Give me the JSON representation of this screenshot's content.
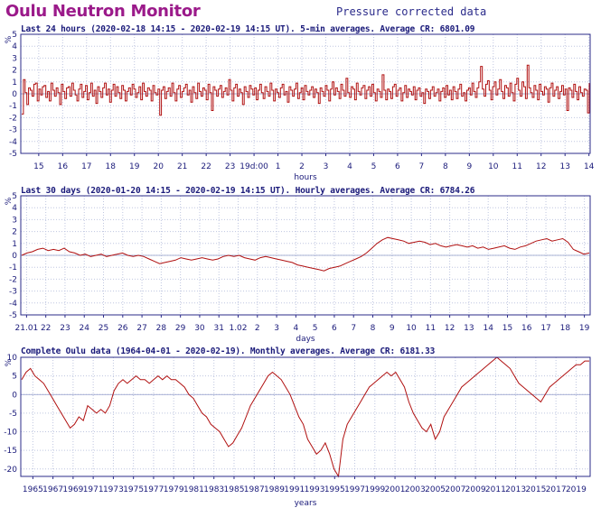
{
  "page": {
    "title": "Oulu Neutron Monitor",
    "subtitle": "Pressure corrected data"
  },
  "colors": {
    "line": "#b01010",
    "grid": "#bfc6e0",
    "frame": "#2b2b8a",
    "text": "#1a1a7a",
    "title": "#9b1a8a"
  },
  "chart_data": [
    {
      "type": "line",
      "title": "Last 24 hours (2020-02-18 14:15 - 2020-02-19 14:15 UT). 5-min averages. Average CR: 6801.09",
      "ylabel": "%",
      "xlabel": "hours",
      "ylim": [
        -5,
        5
      ],
      "yticks": [
        5,
        4,
        3,
        2,
        1,
        0,
        -1,
        -2,
        -3,
        -4,
        -5
      ],
      "xticks": [
        "15",
        "16",
        "17",
        "18",
        "19",
        "20",
        "21",
        "22",
        "23",
        "19d:00",
        "1",
        "2",
        "3",
        "4",
        "5",
        "6",
        "7",
        "8",
        "9",
        "10",
        "11",
        "12",
        "13",
        "14"
      ],
      "grid": true,
      "series": [
        {
          "values": [
            -1.7,
            1.2,
            0.1,
            -0.9,
            0.5,
            0.3,
            -0.2,
            0.8,
            0.9,
            -0.6,
            0.4,
            -0.1,
            0.6,
            0.7,
            -0.3,
            0.2,
            -0.6,
            0.9,
            0.3,
            -0.2,
            0.5,
            0.1,
            -0.9,
            0.8,
            0.2,
            -0.4,
            0.5,
            0.6,
            -0.2,
            0.9,
            0.3,
            -0.1,
            -0.6,
            0.4,
            0.8,
            -0.3,
            0.2,
            0.7,
            -0.5,
            0.1,
            0.9,
            -0.2,
            0.3,
            -0.8,
            0.6,
            0.2,
            -0.3,
            0.5,
            0.9,
            -0.1,
            0.4,
            -0.7,
            0.3,
            0.8,
            -0.2,
            0.6,
            0.1,
            -0.4,
            0.7,
            0.3,
            -0.6,
            0.2,
            0.5,
            -0.1,
            0.8,
            0.4,
            -0.3,
            0.1,
            0.6,
            -0.5,
            0.9,
            0.2,
            -0.2,
            0.5,
            0.3,
            -0.6,
            0.7,
            0.1,
            -0.1,
            0.4,
            -1.8,
            0.3,
            0.6,
            -0.4,
            0.2,
            0.5,
            -0.2,
            0.9,
            0.1,
            -0.6,
            0.4,
            0.7,
            -0.3,
            0.2,
            0.5,
            0.8,
            -0.1,
            0.3,
            -0.7,
            0.6,
            0.1,
            -0.4,
            0.9,
            0.2,
            -0.2,
            0.5,
            0.3,
            -0.5,
            0.8,
            0.1,
            -1.4,
            0.6,
            0.3,
            -0.2,
            0.4,
            0.7,
            -0.3,
            0.2,
            0.5,
            -0.1,
            1.2,
            0.3,
            -0.6,
            0.5,
            0.8,
            -0.2,
            0.4,
            0.1,
            -0.9,
            0.6,
            0.2,
            -0.3,
            0.7,
            0.4,
            -0.1,
            0.5,
            -0.5,
            0.3,
            0.8,
            0.1,
            -0.4,
            0.6,
            0.2,
            -0.2,
            0.9,
            0.3,
            -0.6,
            0.4,
            0.1,
            -0.3,
            0.5,
            0.8,
            -0.1,
            0.2,
            -0.7,
            0.6,
            0.3,
            -0.2,
            0.4,
            0.9,
            -0.4,
            0.1,
            0.5,
            -0.5,
            0.7,
            0.2,
            -0.1,
            0.3,
            0.6,
            -0.3,
            0.4,
            0.1,
            -0.8,
            0.5,
            0.2,
            -0.2,
            0.7,
            0.3,
            -0.6,
            0.4,
            1.0,
            -0.1,
            0.5,
            0.2,
            -0.4,
            0.8,
            0.3,
            -0.2,
            1.3,
            0.1,
            -0.3,
            0.6,
            0.4,
            -0.5,
            0.9,
            0.2,
            -0.1,
            0.5,
            0.7,
            -0.4,
            0.3,
            0.6,
            -0.2,
            0.8,
            0.1,
            -0.6,
            0.4,
            0.2,
            -0.3,
            1.6,
            0.3,
            -0.5,
            0.4,
            0.2,
            -0.4,
            0.6,
            0.8,
            -0.2,
            0.3,
            0.5,
            -0.6,
            0.1,
            0.7,
            -0.3,
            0.4,
            0.2,
            -0.1,
            0.6,
            -0.5,
            0.3,
            0.5,
            -0.2,
            0.1,
            -0.8,
            0.4,
            0.2,
            -0.4,
            0.3,
            0.6,
            -0.2,
            0.1,
            0.4,
            -0.6,
            0.2,
            0.5,
            -0.3,
            0.7,
            -0.1,
            0.3,
            -0.5,
            0.6,
            0.2,
            -0.4,
            0.4,
            0.8,
            -0.2,
            0.1,
            -0.6,
            0.3,
            0.5,
            -0.1,
            0.9,
            0.2,
            -0.3,
            0.5,
            1.0,
            2.3,
            0.4,
            -0.2,
            0.8,
            1.1,
            0.3,
            -0.5,
            0.6,
            1.0,
            -0.1,
            0.4,
            1.2,
            0.2,
            -0.4,
            0.7,
            0.5,
            -0.2,
            0.9,
            0.1,
            -0.6,
            0.8,
            1.3,
            0.3,
            -0.2,
            1.0,
            0.6,
            -0.4,
            2.4,
            0.5,
            0.1,
            -0.3,
            0.7,
            0.3,
            -0.5,
            0.8,
            0.2,
            -0.1,
            0.6,
            0.4,
            -0.7,
            0.5,
            0.9,
            -0.2,
            0.3,
            0.6,
            -0.4,
            0.2,
            0.7,
            -0.1,
            0.4,
            -1.4,
            0.5,
            0.3,
            -0.3,
            0.8,
            0.2,
            -0.5,
            0.6,
            0.1,
            -0.2,
            0.4,
            0.3,
            -1.6,
            0.9
          ]
        }
      ]
    },
    {
      "type": "line",
      "title": "Last 30 days (2020-01-20 14:15 - 2020-02-19 14:15 UT). Hourly averages. Average CR: 6784.26",
      "ylabel": "%",
      "xlabel": "days",
      "ylim": [
        -5,
        5
      ],
      "yticks": [
        5,
        4,
        3,
        2,
        1,
        0,
        -1,
        -2,
        -3,
        -4,
        -5
      ],
      "xticks": [
        "21.01",
        "22",
        "23",
        "24",
        "25",
        "26",
        "27",
        "28",
        "29",
        "30",
        "31",
        "1.02",
        "2",
        "3",
        "4",
        "5",
        "6",
        "7",
        "8",
        "9",
        "10",
        "11",
        "12",
        "13",
        "14",
        "15",
        "16",
        "17",
        "18",
        "19"
      ],
      "grid": true,
      "series": [
        {
          "values": [
            0.0,
            0.2,
            0.3,
            0.5,
            0.6,
            0.4,
            0.5,
            0.4,
            0.6,
            0.3,
            0.2,
            0.0,
            0.1,
            -0.1,
            0.0,
            0.1,
            -0.1,
            0.0,
            0.1,
            0.2,
            0.0,
            -0.1,
            0.0,
            -0.1,
            -0.3,
            -0.5,
            -0.7,
            -0.6,
            -0.5,
            -0.4,
            -0.2,
            -0.3,
            -0.4,
            -0.3,
            -0.2,
            -0.3,
            -0.4,
            -0.3,
            -0.1,
            0.0,
            -0.1,
            0.0,
            -0.2,
            -0.3,
            -0.4,
            -0.2,
            -0.1,
            -0.2,
            -0.3,
            -0.4,
            -0.5,
            -0.6,
            -0.8,
            -0.9,
            -1.0,
            -1.1,
            -1.2,
            -1.3,
            -1.1,
            -1.0,
            -0.9,
            -0.7,
            -0.5,
            -0.3,
            -0.1,
            0.2,
            0.6,
            1.0,
            1.3,
            1.5,
            1.4,
            1.3,
            1.2,
            1.0,
            1.1,
            1.2,
            1.1,
            0.9,
            1.0,
            0.8,
            0.7,
            0.8,
            0.9,
            0.8,
            0.7,
            0.8,
            0.6,
            0.7,
            0.5,
            0.6,
            0.7,
            0.8,
            0.6,
            0.5,
            0.7,
            0.8,
            1.0,
            1.2,
            1.3,
            1.4,
            1.2,
            1.3,
            1.4,
            1.1,
            0.5,
            0.3,
            0.1,
            0.2
          ]
        }
      ]
    },
    {
      "type": "line",
      "title": "Complete Oulu data (1964-04-01 - 2020-02-19). Monthly averages. Average CR: 6181.33",
      "ylabel": "%",
      "xlabel": "years",
      "ylim": [
        -22,
        10
      ],
      "yticks": [
        10,
        5,
        0,
        -5,
        -10,
        -15,
        -20
      ],
      "xticks": [
        "1965",
        "1967",
        "1969",
        "1971",
        "1973",
        "1975",
        "1977",
        "1979",
        "1981",
        "1983",
        "1985",
        "1987",
        "1989",
        "1991",
        "1993",
        "1995",
        "1997",
        "1999",
        "2001",
        "2003",
        "2005",
        "2007",
        "2009",
        "2011",
        "2013",
        "2015",
        "2017",
        "2019"
      ],
      "grid": true,
      "series": [
        {
          "x_start": 1964.25,
          "x_end": 2020.13,
          "values": [
            4,
            6,
            7,
            5,
            4,
            3,
            1,
            -1,
            -3,
            -5,
            -7,
            -9,
            -8,
            -6,
            -7,
            -3,
            -4,
            -5,
            -4,
            -5,
            -3,
            1,
            3,
            4,
            3,
            4,
            5,
            4,
            4,
            3,
            4,
            5,
            4,
            5,
            4,
            4,
            3,
            2,
            0,
            -1,
            -3,
            -5,
            -6,
            -8,
            -9,
            -10,
            -12,
            -14,
            -13,
            -11,
            -9,
            -6,
            -3,
            -1,
            1,
            3,
            5,
            6,
            5,
            4,
            2,
            0,
            -3,
            -6,
            -8,
            -12,
            -14,
            -16,
            -15,
            -13,
            -16,
            -20,
            -22,
            -12,
            -8,
            -6,
            -4,
            -2,
            0,
            2,
            3,
            4,
            5,
            6,
            5,
            6,
            4,
            2,
            -2,
            -5,
            -7,
            -9,
            -10,
            -8,
            -12,
            -10,
            -6,
            -4,
            -2,
            0,
            2,
            3,
            4,
            5,
            6,
            7,
            8,
            9,
            10,
            9,
            8,
            7,
            5,
            3,
            2,
            1,
            0,
            -1,
            -2,
            0,
            2,
            3,
            4,
            5,
            6,
            7,
            8,
            8,
            9,
            9
          ]
        }
      ]
    }
  ]
}
